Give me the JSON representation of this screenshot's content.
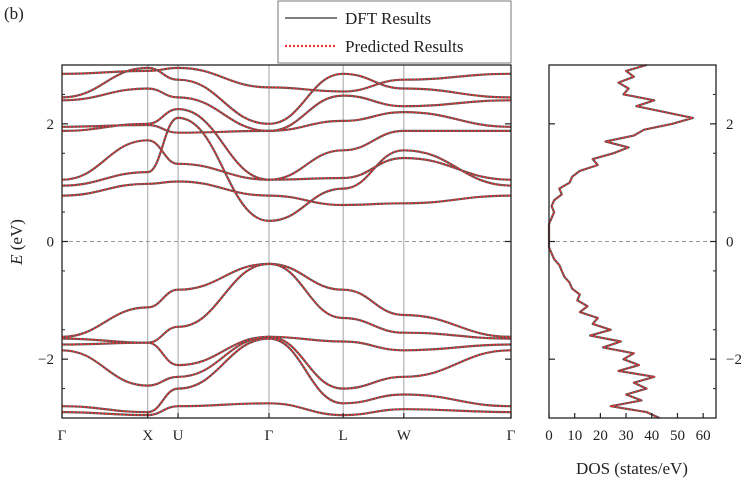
{
  "panel_label": "(b)",
  "colors": {
    "dft": "#555555",
    "predicted": "#ee3333",
    "vlines": "#9a9a9a",
    "fermi": "#999999",
    "axis": "#222222"
  },
  "legend": {
    "dft_label": "DFT Results",
    "predicted_label": "Predicted Results",
    "placement": "top"
  },
  "chart_data": [
    {
      "type": "line",
      "title": "",
      "ylabel_italic": "E",
      "ylabel_unit": " (eV)",
      "xlabel": "",
      "ylim": [
        -3,
        3
      ],
      "yticks": [
        -2,
        0,
        2
      ],
      "ytick_labels": [
        "−2",
        "0",
        "2"
      ],
      "kpoint_labels": [
        "Γ",
        "X",
        "U",
        "Γ",
        "L",
        "W",
        "Γ"
      ],
      "kpoint_positions": [
        0,
        0.8,
        1.083,
        1.931,
        2.623,
        3.189,
        4.189
      ],
      "fermi_level": 0,
      "series_names": [
        "DFT Results",
        "Predicted Results"
      ],
      "conduction_bands": [
        {
          "name": "cb1",
          "values": [
            0.78,
            0.98,
            1.02,
            0.78,
            0.62,
            0.65,
            0.78
          ]
        },
        {
          "name": "cb2",
          "values": [
            1.05,
            1.72,
            1.32,
            1.05,
            1.08,
            1.42,
            1.05
          ]
        },
        {
          "name": "cb3",
          "values": [
            0.95,
            1.18,
            2.1,
            0.35,
            0.9,
            1.55,
            0.95
          ]
        },
        {
          "name": "cb4",
          "values": [
            1.88,
            2.0,
            2.25,
            1.05,
            1.55,
            1.88,
            1.88
          ]
        },
        {
          "name": "cb5",
          "values": [
            1.95,
            1.98,
            1.85,
            1.88,
            2.05,
            2.2,
            1.95
          ]
        },
        {
          "name": "cb6",
          "values": [
            2.4,
            2.6,
            2.45,
            1.88,
            2.48,
            2.3,
            2.4
          ]
        },
        {
          "name": "cb7",
          "values": [
            2.45,
            2.95,
            2.75,
            2.0,
            2.85,
            2.6,
            2.45
          ]
        },
        {
          "name": "cb8",
          "values": [
            2.85,
            2.9,
            2.95,
            2.62,
            2.55,
            2.75,
            2.85
          ]
        }
      ],
      "valence_bands": [
        {
          "name": "vb1",
          "values": [
            -1.62,
            -1.12,
            -0.82,
            -0.38,
            -0.82,
            -1.25,
            -1.62
          ]
        },
        {
          "name": "vb2",
          "values": [
            -1.65,
            -1.72,
            -1.45,
            -0.38,
            -1.3,
            -1.55,
            -1.65
          ]
        },
        {
          "name": "vb3",
          "values": [
            -1.75,
            -1.72,
            -2.1,
            -1.62,
            -1.7,
            -1.85,
            -1.75
          ]
        },
        {
          "name": "vb4",
          "values": [
            -1.85,
            -2.45,
            -2.3,
            -1.62,
            -2.5,
            -2.3,
            -1.85
          ]
        },
        {
          "name": "vb5",
          "values": [
            -2.8,
            -2.9,
            -2.5,
            -1.65,
            -2.75,
            -2.6,
            -2.8
          ]
        },
        {
          "name": "vb6",
          "values": [
            -2.9,
            -2.95,
            -2.8,
            -2.75,
            -2.95,
            -2.85,
            -2.9
          ]
        }
      ]
    },
    {
      "type": "line",
      "title": "",
      "xlabel": "DOS (states/eV)",
      "ylabel": "",
      "xlim": [
        0,
        65
      ],
      "xticks": [
        0,
        10,
        20,
        30,
        40,
        50,
        60
      ],
      "ylim": [
        -3,
        3
      ],
      "yticks": [
        -2,
        0,
        2
      ],
      "ytick_labels": [
        "−2",
        "0",
        "2"
      ],
      "series_names": [
        "DFT Results",
        "Predicted Results"
      ],
      "energy": [
        -3.0,
        -2.9,
        -2.8,
        -2.7,
        -2.6,
        -2.5,
        -2.4,
        -2.3,
        -2.2,
        -2.1,
        -2.0,
        -1.9,
        -1.8,
        -1.7,
        -1.6,
        -1.5,
        -1.4,
        -1.3,
        -1.2,
        -1.1,
        -1.0,
        -0.9,
        -0.8,
        -0.7,
        -0.6,
        -0.5,
        -0.4,
        -0.3,
        -0.2,
        -0.1,
        0.0,
        0.1,
        0.2,
        0.3,
        0.4,
        0.5,
        0.6,
        0.7,
        0.8,
        0.9,
        1.0,
        1.1,
        1.2,
        1.3,
        1.4,
        1.5,
        1.6,
        1.7,
        1.8,
        1.9,
        2.0,
        2.1,
        2.2,
        2.3,
        2.4,
        2.5,
        2.6,
        2.7,
        2.8,
        2.9,
        3.0
      ],
      "dos": [
        43,
        38,
        24,
        36,
        30,
        38,
        33,
        41,
        27,
        35,
        29,
        33,
        21,
        28,
        16,
        24,
        17,
        19,
        12,
        15,
        11,
        12,
        9,
        8,
        6,
        5,
        4,
        2,
        1,
        0,
        0,
        0,
        0,
        0,
        1,
        2,
        1,
        2,
        5,
        4,
        8,
        9,
        12,
        19,
        17,
        25,
        31,
        22,
        33,
        37,
        48,
        56,
        45,
        34,
        41,
        29,
        31,
        27,
        33,
        30,
        38
      ]
    }
  ]
}
